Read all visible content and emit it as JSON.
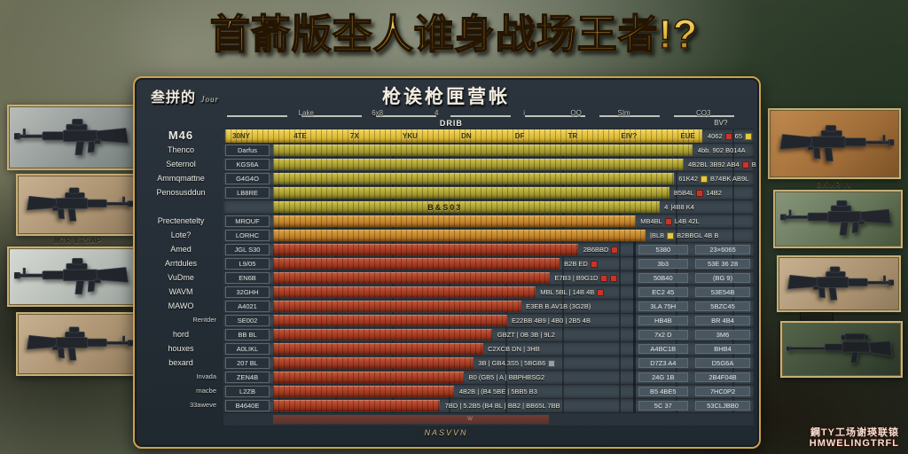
{
  "title": "首萮版杢人谁身战场王者!?",
  "panel": {
    "header_left": "叁拼的",
    "header_left_sub": "Jour",
    "title": "枪诶枪匣营帐",
    "axis_labels": [
      "Lake",
      "6x8",
      "4",
      "i",
      "OQ",
      "SIm",
      "CO3"
    ],
    "axis_center": "DRIB",
    "axis_right": "BV?",
    "footer": "NASVVN",
    "footer_mark": "w"
  },
  "table": {
    "header": {
      "label": "M46",
      "cells": [
        "30NY",
        "4TE",
        "7X",
        "YKU",
        "DN",
        "DF",
        "TR",
        "EIV?",
        "EUE"
      ],
      "note": "4062",
      "note2": "65"
    },
    "rows": [
      {
        "label": "Thenco",
        "small": false,
        "cell": "Darfus",
        "color": "olive",
        "len": 88,
        "in": "",
        "note": "4bb. 902 B014A",
        "badges": [],
        "note2": "",
        "right": []
      },
      {
        "label": "Seternol",
        "small": false,
        "cell": "KGS6A",
        "color": "olive",
        "len": 86,
        "in": "",
        "note": "4B2BL  3B92 AB4",
        "badges": [
          "red"
        ],
        "note2": "B",
        "right": []
      },
      {
        "label": "Ammqmattne",
        "small": false,
        "cell": "G4G4O",
        "color": "olive",
        "len": 84,
        "in": "",
        "note": "61K42",
        "badges": [
          "yellow"
        ],
        "note2": "B74BK AB9L",
        "right": []
      },
      {
        "label": "Penosusddun",
        "small": false,
        "cell": "LB8RE",
        "color": "olive",
        "len": 83,
        "in": "",
        "note": "B5B4L",
        "badges": [
          "red"
        ],
        "note2": "14B2",
        "right": []
      },
      {
        "label": "",
        "small": false,
        "cell": "",
        "color": "olive",
        "len": 81,
        "in": "B&S03",
        "note": "4",
        "badges": [],
        "note2": "|4B8 K4",
        "right": []
      },
      {
        "label": "Prectenetelty",
        "small": false,
        "cell": "MROUF",
        "color": "orange",
        "len": 76,
        "in": "",
        "note": "MB4BL",
        "badges": [
          "red"
        ],
        "note2": "L4B 42L",
        "right": []
      },
      {
        "label": "Lote?",
        "small": false,
        "cell": "LORHC",
        "color": "orange",
        "len": 78,
        "in": "",
        "note": "|BLB",
        "badges": [
          "yellow"
        ],
        "note2": "B2BBGL 4B B",
        "right": []
      },
      {
        "label": "Amed",
        "small": false,
        "cell": "JGL S30",
        "color": "red",
        "len": 64,
        "in": "",
        "note": "2B6BBD",
        "badges": [
          "red"
        ],
        "note2": "",
        "right": [
          "5380",
          "23×6065"
        ]
      },
      {
        "label": "Arrtdules",
        "small": false,
        "cell": "L9/05",
        "color": "red",
        "len": 60,
        "in": "",
        "note": "B2B ED",
        "badges": [
          "red"
        ],
        "note2": "",
        "right": [
          "3b3",
          "53E 36 28"
        ]
      },
      {
        "label": "VuDme",
        "small": false,
        "cell": "EN6B",
        "color": "red",
        "len": 58,
        "in": "",
        "note": "E7B3 | B9G1D",
        "badges": [
          "red",
          "red"
        ],
        "note2": "",
        "right": [
          "50B40",
          "(BG 9)"
        ]
      },
      {
        "label": "WAVM",
        "small": false,
        "cell": "32GHH",
        "color": "red",
        "len": 55,
        "in": "",
        "note": "MBL 5BL | 14B 4B",
        "badges": [
          "red"
        ],
        "note2": "",
        "right": [
          "EC2 45",
          "53E54B"
        ]
      },
      {
        "label": "MAWO",
        "small": false,
        "cell": "A4021",
        "color": "red",
        "len": 52,
        "in": "",
        "note": "E3EB B.AV1B  (3G2B)",
        "badges": [],
        "note2": "",
        "right": [
          "3LA 75H",
          "5BZC45"
        ]
      },
      {
        "label": "Rentder",
        "small": true,
        "cell": "SE002",
        "color": "red",
        "len": 49,
        "in": "",
        "note": "E22BB 4B9 | 4B0 | 2B5 4B",
        "badges": [],
        "note2": "",
        "right": [
          "HB4B",
          "BR 4B4"
        ]
      },
      {
        "label": "hord",
        "small": false,
        "cell": "BB BL",
        "color": "red",
        "len": 46,
        "in": "",
        "note": "GBZT | 0B 3B | 9L2",
        "badges": [],
        "note2": "",
        "right": [
          "7x2 D",
          "3M6"
        ]
      },
      {
        "label": "houxes",
        "small": false,
        "cell": "A0LIKL",
        "color": "red",
        "len": 44,
        "in": "",
        "note": "C2XCB DN | 3HB",
        "badges": [],
        "note2": "",
        "right": [
          "A4BC1B",
          "BHB4"
        ]
      },
      {
        "label": "bexard",
        "small": false,
        "cell": "207 BL",
        "color": "red",
        "len": 42,
        "in": "",
        "note": "3B | GB4.3S5 | 5BGB6",
        "badges": [
          "gray"
        ],
        "note2": "",
        "right": [
          "D7Z3 A4",
          "D5G6A"
        ]
      },
      {
        "label": "Invada",
        "small": true,
        "cell": "ZEN4B",
        "color": "red",
        "len": 40,
        "in": "",
        "note": "B0 (GB5 | A | BBPHBSG2",
        "badges": [],
        "note2": "",
        "right": [
          "24G 1B",
          "2B4F04B"
        ]
      },
      {
        "label": "rnacbe",
        "small": true,
        "cell": "L2ZB",
        "color": "red",
        "len": 38,
        "in": "",
        "note": "4B2B | (B4 5BE | 5BB5 B3",
        "badges": [],
        "note2": "",
        "right": [
          "B5 4BE5",
          "7HC0P2"
        ]
      },
      {
        "label": "33aweve",
        "small": true,
        "cell": "B4640E",
        "color": "red",
        "len": 35,
        "in": "",
        "note": "7BD | 5.2B5 (B4 BL | BB2 | BB65L 7BB",
        "badges": [],
        "note2": "",
        "right": [
          "5C 37",
          "53CLJBB0"
        ]
      }
    ]
  },
  "weapons_left": {
    "caption2": "M7R LTSAP"
  },
  "weapons_right": {
    "caption1": "BKMR IV"
  },
  "watermark": {
    "line1": "鋼TY工场谢瑛联锿",
    "line2": "HMWELINGTRFL"
  },
  "colors": {
    "gold_border": "#c9a24a",
    "olive_bar": "#a89d30",
    "orange_bar": "#c1802a",
    "red_bar": "#a53a22",
    "header_bar": "#ddba35",
    "badge_red": "#c2372a",
    "badge_yellow": "#e5c93f"
  }
}
